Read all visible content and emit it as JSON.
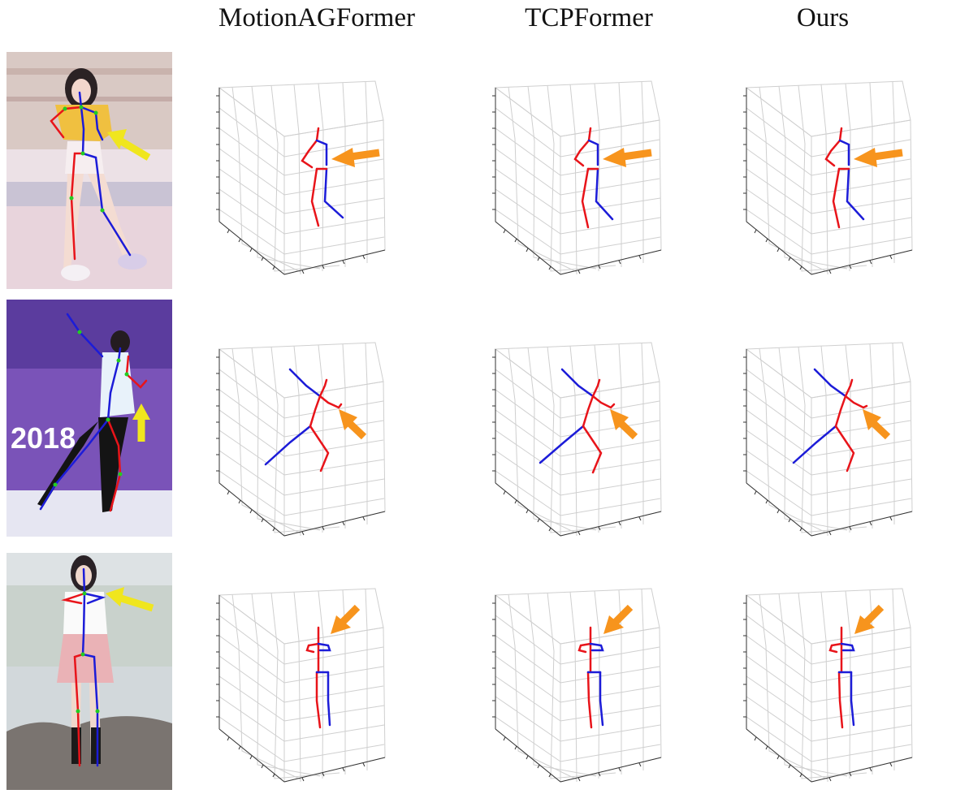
{
  "figure": {
    "columns": [
      {
        "label": "MotionAGFormer"
      },
      {
        "label": "TCPFormer"
      },
      {
        "label": "Ours"
      }
    ],
    "rows": [
      {
        "photo_scene": "dancer in yellow crop top on stage",
        "photo_text": ""
      },
      {
        "photo_scene": "figure skater on ice rink",
        "photo_text": "2018"
      },
      {
        "photo_scene": "girl in pink skirt standing on rocks",
        "photo_text": ""
      }
    ],
    "colors": {
      "left_limb": "#e8141a",
      "right_limb": "#1c1cd8",
      "joint": "#22cc22",
      "input_arrow": "#f0e61e",
      "pred_arrow": "#f7941d",
      "grid": "#cfcfcf"
    }
  }
}
